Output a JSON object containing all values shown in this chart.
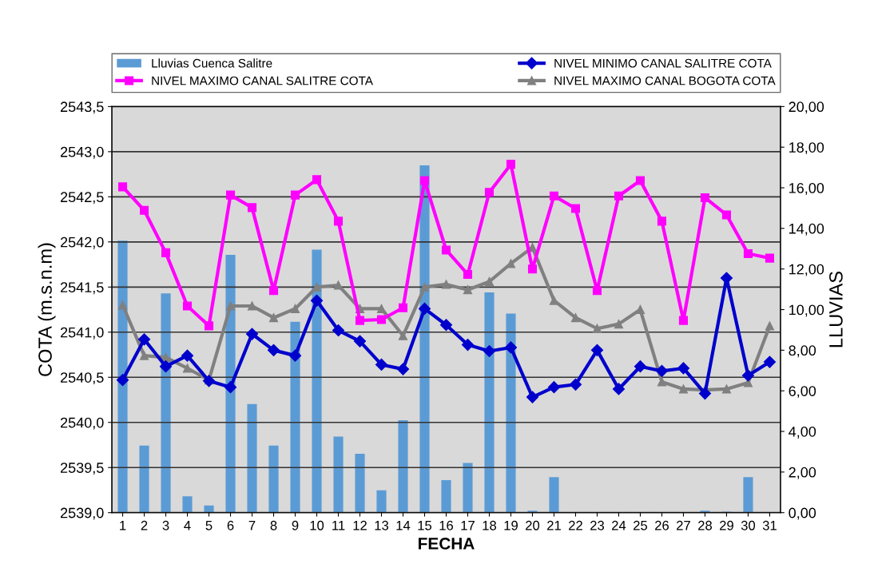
{
  "chart_data": {
    "type": "line",
    "xlabel": "FECHA",
    "ylabel": "COTA (m.s.n.m)",
    "y2label": "LLUVIAS",
    "categories": [
      "1",
      "2",
      "3",
      "4",
      "5",
      "6",
      "7",
      "8",
      "9",
      "10",
      "11",
      "12",
      "13",
      "14",
      "15",
      "16",
      "17",
      "18",
      "19",
      "20",
      "21",
      "22",
      "23",
      "24",
      "25",
      "26",
      "27",
      "28",
      "29",
      "30",
      "31"
    ],
    "series": [
      {
        "name": "Lluvias Cuenca Salitre",
        "type": "bar",
        "axis": "y2",
        "color": "#5b9bd5",
        "values": [
          13.4,
          3.3,
          10.8,
          0.8,
          0.35,
          12.7,
          5.35,
          3.3,
          9.4,
          12.95,
          3.75,
          2.9,
          1.1,
          4.55,
          17.1,
          1.6,
          2.45,
          10.85,
          9.8,
          0.1,
          1.75,
          0,
          0,
          0,
          0,
          0,
          0,
          0.1,
          0.05,
          1.75,
          0
        ]
      },
      {
        "name": "NIVEL MAXIMO CANAL SALITRE COTA",
        "color": "#ff00ff",
        "marker": "square",
        "values": [
          2542.61,
          2542.35,
          2541.88,
          2541.29,
          2541.07,
          2542.52,
          2542.38,
          2541.46,
          2542.52,
          2542.69,
          2542.23,
          2541.13,
          2541.14,
          2541.27,
          2542.68,
          2541.91,
          2541.64,
          2542.55,
          2542.86,
          2541.7,
          2542.51,
          2542.37,
          2541.46,
          2542.51,
          2542.68,
          2542.23,
          2541.13,
          2542.49,
          2542.3,
          2541.87,
          2541.82
        ]
      },
      {
        "name": "NIVEL MINIMO CANAL SALITRE COTA",
        "color": "#0000cc",
        "marker": "diamond",
        "values": [
          2540.47,
          2540.92,
          2540.62,
          2540.74,
          2540.46,
          2540.39,
          2540.98,
          2540.8,
          2540.74,
          2541.35,
          2541.02,
          2540.9,
          2540.64,
          2540.59,
          2541.26,
          2541.08,
          2540.86,
          2540.79,
          2540.83,
          2540.28,
          2540.39,
          2540.42,
          2540.8,
          2540.37,
          2540.62,
          2540.57,
          2540.6,
          2540.32,
          2541.6,
          2540.52,
          2540.67
        ]
      },
      {
        "name": "NIVEL MAXIMO CANAL BOGOTA COTA",
        "color": "#808080",
        "marker": "triangle",
        "values": [
          2541.3,
          2540.74,
          2540.72,
          2540.6,
          2540.47,
          2541.29,
          2541.29,
          2541.16,
          2541.26,
          2541.5,
          2541.52,
          2541.26,
          2541.26,
          2540.96,
          2541.5,
          2541.53,
          2541.47,
          2541.56,
          2541.76,
          2541.94,
          2541.35,
          2541.16,
          2541.04,
          2541.09,
          2541.25,
          2540.45,
          2540.37,
          2540.36,
          2540.37,
          2540.44,
          2541.07
        ]
      }
    ],
    "ylim": [
      2539.0,
      2543.5
    ],
    "yticks": [
      {
        "value": 2539.0,
        "label": "2539,0"
      },
      {
        "value": 2539.5,
        "label": "2539,5"
      },
      {
        "value": 2540.0,
        "label": "2540,0"
      },
      {
        "value": 2540.5,
        "label": "2540,5"
      },
      {
        "value": 2541.0,
        "label": "2541,0"
      },
      {
        "value": 2541.5,
        "label": "2541,5"
      },
      {
        "value": 2542.0,
        "label": "2542,0"
      },
      {
        "value": 2542.5,
        "label": "2542,5"
      },
      {
        "value": 2543.0,
        "label": "2543,0"
      },
      {
        "value": 2543.5,
        "label": "2543,5"
      }
    ],
    "y2lim": [
      0,
      20
    ],
    "y2ticks": [
      {
        "value": 0,
        "label": "0,00"
      },
      {
        "value": 2,
        "label": "2,00"
      },
      {
        "value": 4,
        "label": "4,00"
      },
      {
        "value": 6,
        "label": "6,00"
      },
      {
        "value": 8,
        "label": "8,00"
      },
      {
        "value": 10,
        "label": "10,00"
      },
      {
        "value": 12,
        "label": "12,00"
      },
      {
        "value": 14,
        "label": "14,00"
      },
      {
        "value": 16,
        "label": "16,00"
      },
      {
        "value": 18,
        "label": "18,00"
      },
      {
        "value": 20,
        "label": "20,00"
      }
    ],
    "grid": "y",
    "legend": "top"
  }
}
